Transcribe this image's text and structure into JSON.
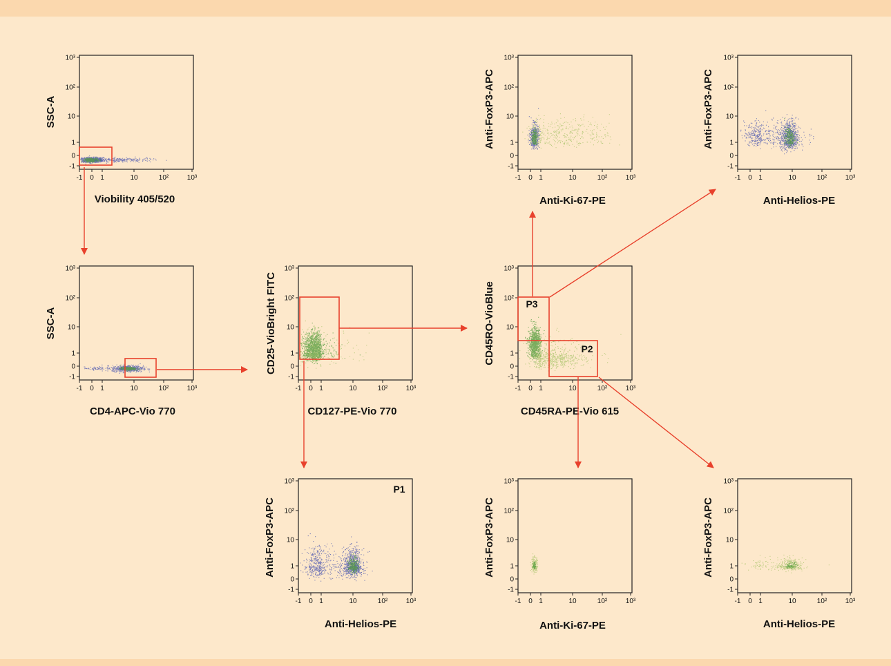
{
  "colors": {
    "background": "#fde8cb",
    "band": "#fbd8ae",
    "gate": "#e8412c",
    "dots_blue": "#4a55b0",
    "dots_green": "#4e9a3a",
    "dots_pale": "#a9c46b"
  },
  "tick_labels": {
    "y": [
      "10³",
      "10²",
      "10",
      "1",
      "0",
      "-1"
    ],
    "x": [
      "-1",
      "0",
      "1",
      "10",
      "10²",
      "10³"
    ]
  },
  "plots": [
    {
      "id": "viability",
      "xlabel": "Viobility 405/520",
      "ylabel": "SSC-A",
      "gates": [],
      "clusters": [
        {
          "x": 0.0,
          "y": -0.4,
          "sx": 0.5,
          "sy": 0.12,
          "n": 900,
          "color": "dots_blue"
        },
        {
          "x": 0.0,
          "y": -0.4,
          "sx": 0.3,
          "sy": 0.08,
          "n": 350,
          "color": "dots_green"
        },
        {
          "x": 1.6,
          "y": -0.4,
          "sx": 0.5,
          "sy": 0.1,
          "n": 200,
          "color": "dots_blue"
        }
      ]
    },
    {
      "id": "cd4",
      "xlabel": "CD4-APC-Vio 770",
      "ylabel": "SSC-A",
      "gates": [],
      "clusters": [
        {
          "x": 1.8,
          "y": -0.2,
          "sx": 0.25,
          "sy": 0.15,
          "n": 600,
          "color": "dots_blue"
        },
        {
          "x": 1.8,
          "y": -0.2,
          "sx": 0.12,
          "sy": 0.08,
          "n": 250,
          "color": "dots_green"
        },
        {
          "x": 0.4,
          "y": -0.2,
          "sx": 0.5,
          "sy": 0.08,
          "n": 60,
          "color": "dots_blue"
        }
      ]
    },
    {
      "id": "cd25",
      "xlabel": "CD127-PE-Vio 770",
      "ylabel": "CD25-VioBright FITC",
      "gates": [],
      "clusters": [
        {
          "x": 0.3,
          "y": 1.15,
          "sx": 0.45,
          "sy": 0.3,
          "n": 1300,
          "color": "dots_green"
        },
        {
          "x": 0.3,
          "y": 1.15,
          "sx": 0.9,
          "sy": 0.45,
          "n": 300,
          "color": "dots_pale"
        }
      ]
    },
    {
      "id": "cd45",
      "xlabel": "CD45RA-PE-Vio 615",
      "ylabel": "CD45RO-VioBlue",
      "gates": [
        {
          "label": "P3"
        },
        {
          "label": "P2"
        }
      ],
      "clusters": [
        {
          "x": 0.4,
          "y": 1.35,
          "sx": 0.28,
          "sy": 0.3,
          "n": 900,
          "color": "dots_green"
        },
        {
          "x": 1.4,
          "y": 0.6,
          "sx": 0.5,
          "sy": 0.35,
          "n": 500,
          "color": "dots_pale"
        },
        {
          "x": 1.0,
          "y": 1.0,
          "sx": 0.8,
          "sy": 0.6,
          "n": 150,
          "color": "dots_pale"
        }
      ]
    },
    {
      "id": "p3_ki67",
      "xlabel": "Anti-Ki-67-PE",
      "ylabel": "Anti-FoxP3-APC",
      "gates": [],
      "clusters": [
        {
          "x": 0.35,
          "y": 1.2,
          "sx": 0.2,
          "sy": 0.25,
          "n": 500,
          "color": "dots_blue"
        },
        {
          "x": 0.35,
          "y": 1.2,
          "sx": 0.12,
          "sy": 0.15,
          "n": 220,
          "color": "dots_green"
        },
        {
          "x": 1.7,
          "y": 1.35,
          "sx": 0.8,
          "sy": 0.3,
          "n": 400,
          "color": "dots_pale"
        }
      ]
    },
    {
      "id": "p3_helios",
      "xlabel": "Anti-Helios-PE",
      "ylabel": "Anti-FoxP3-APC",
      "gates": [],
      "clusters": [
        {
          "x": 1.9,
          "y": 1.2,
          "sx": 0.15,
          "sy": 0.35,
          "n": 600,
          "color": "dots_blue"
        },
        {
          "x": 1.9,
          "y": 1.2,
          "sx": 0.08,
          "sy": 0.2,
          "n": 250,
          "color": "dots_green"
        },
        {
          "x": 0.9,
          "y": 1.3,
          "sx": 0.7,
          "sy": 0.25,
          "n": 400,
          "color": "dots_blue"
        }
      ]
    },
    {
      "id": "p1_helios",
      "xlabel": "Anti-Helios-PE",
      "ylabel": "Anti-FoxP3-APC",
      "gates": [
        {
          "label": "P1"
        }
      ],
      "clusters": [
        {
          "x": 2.0,
          "y": 0.95,
          "sx": 0.15,
          "sy": 0.35,
          "n": 700,
          "color": "dots_blue"
        },
        {
          "x": 2.0,
          "y": 0.95,
          "sx": 0.08,
          "sy": 0.2,
          "n": 300,
          "color": "dots_green"
        },
        {
          "x": 0.8,
          "y": 1.0,
          "sx": 0.7,
          "sy": 0.4,
          "n": 500,
          "color": "dots_blue"
        }
      ]
    },
    {
      "id": "p2_ki67",
      "xlabel": "Anti-Ki-67-PE",
      "ylabel": "Anti-FoxP3-APC",
      "gates": [],
      "clusters": [
        {
          "x": 0.35,
          "y": 1.0,
          "sx": 0.15,
          "sy": 0.18,
          "n": 180,
          "color": "dots_pale"
        },
        {
          "x": 0.35,
          "y": 1.0,
          "sx": 0.08,
          "sy": 0.1,
          "n": 60,
          "color": "dots_green"
        }
      ]
    },
    {
      "id": "p2_helios",
      "xlabel": "Anti-Helios-PE",
      "ylabel": "Anti-FoxP3-APC",
      "gates": [],
      "clusters": [
        {
          "x": 1.95,
          "y": 1.0,
          "sx": 0.2,
          "sy": 0.15,
          "n": 260,
          "color": "dots_pale"
        },
        {
          "x": 1.95,
          "y": 1.0,
          "sx": 0.1,
          "sy": 0.08,
          "n": 80,
          "color": "dots_green"
        },
        {
          "x": 1.1,
          "y": 1.0,
          "sx": 0.6,
          "sy": 0.15,
          "n": 80,
          "color": "dots_pale"
        }
      ]
    }
  ]
}
